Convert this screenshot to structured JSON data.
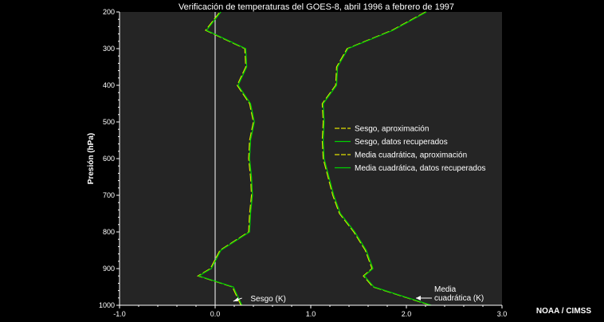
{
  "title": "Verificación de temperaturas del GOES-8, abril 1996 a febrero de 1997",
  "credit": "NOAA / CIMSS",
  "colors": {
    "background": "#000000",
    "plot_bg": "#252525",
    "approx": "#e0e000",
    "retrieved": "#00d000",
    "zero_line": "#ffffff"
  },
  "chart_data": {
    "type": "line",
    "title": "Verificación de temperaturas del GOES-8, abril 1996 a febrero de 1997",
    "xlabel": "",
    "ylabel": "Presión (hPa)",
    "xlim": [
      -1.0,
      3.0
    ],
    "ylim": [
      1000,
      200
    ],
    "y_inverted": true,
    "x_ticks": [
      "-1.0",
      "0.0",
      "1.0",
      "2.0",
      "3.0"
    ],
    "x_tick_values": [
      -1.0,
      0.0,
      1.0,
      2.0,
      3.0
    ],
    "y_ticks": [
      "200",
      "300",
      "400",
      "500",
      "600",
      "700",
      "800",
      "900",
      "1000"
    ],
    "y_tick_values": [
      200,
      300,
      400,
      500,
      600,
      700,
      800,
      900,
      1000
    ],
    "grid": false,
    "legend_position": "center-right",
    "pressure": [
      1000,
      950,
      920,
      900,
      850,
      800,
      750,
      700,
      650,
      600,
      550,
      500,
      450,
      400,
      350,
      300,
      250,
      200
    ],
    "series": [
      {
        "name": "Sesgo, aproximación",
        "style": "dashed",
        "color": "#e0e000",
        "values": [
          0.27,
          0.18,
          -0.18,
          -0.05,
          0.05,
          0.35,
          0.36,
          0.38,
          0.37,
          0.35,
          0.36,
          0.4,
          0.36,
          0.23,
          0.32,
          0.31,
          -0.1,
          0.05
        ]
      },
      {
        "name": "Sesgo, datos recuperados",
        "style": "solid",
        "color": "#00d000",
        "values": [
          0.28,
          0.19,
          -0.17,
          -0.04,
          0.06,
          0.36,
          0.37,
          0.39,
          0.38,
          0.36,
          0.37,
          0.41,
          0.37,
          0.24,
          0.33,
          0.32,
          -0.09,
          0.06
        ]
      },
      {
        "name": "Media cuadrática, aproximación",
        "style": "dashed",
        "color": "#e0e000",
        "values": [
          2.25,
          1.65,
          1.55,
          1.64,
          1.57,
          1.45,
          1.3,
          1.23,
          1.18,
          1.13,
          1.12,
          1.13,
          1.12,
          1.26,
          1.27,
          1.38,
          1.85,
          2.2
        ]
      },
      {
        "name": "Media cuadrática, datos recuperados",
        "style": "solid",
        "color": "#00d000",
        "values": [
          2.26,
          1.66,
          1.56,
          1.65,
          1.58,
          1.46,
          1.31,
          1.24,
          1.19,
          1.14,
          1.13,
          1.14,
          1.13,
          1.27,
          1.28,
          1.39,
          1.86,
          2.21
        ]
      }
    ],
    "annotations": [
      {
        "text": "Sesgo (K)",
        "x": 0.25,
        "y": 985
      },
      {
        "text": "Media",
        "x": 2.27,
        "y": 960
      },
      {
        "text": "cuadrática (K)",
        "x": 2.27,
        "y": 985
      }
    ]
  }
}
